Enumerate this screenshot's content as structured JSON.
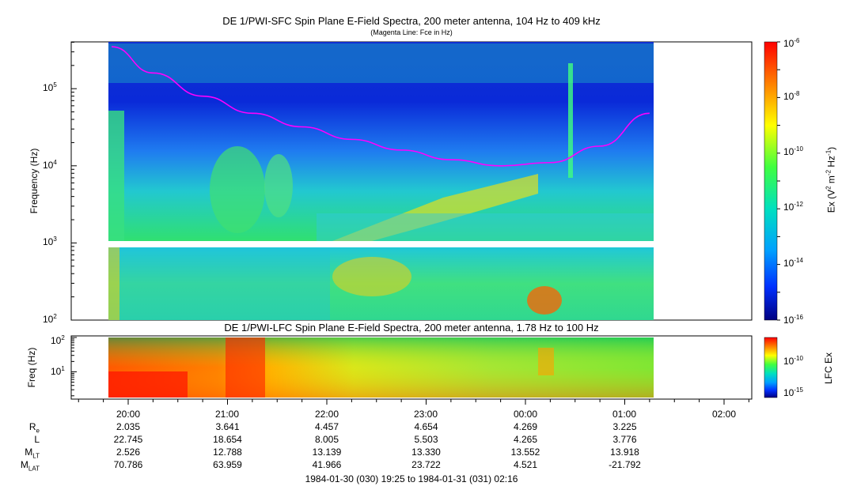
{
  "chart_data": [
    {
      "type": "heatmap",
      "title": "DE 1/PWI-SFC  Spin Plane E-Field Spectra, 200 meter antenna, 104 Hz to 409 kHz",
      "subtitle": "(Magenta Line: Fce in Hz)",
      "ylabel": "Frequency (Hz)",
      "yscale": "log",
      "ylim": [
        100,
        409000
      ],
      "y_ticks": [
        "10^2",
        "10^3",
        "10^4",
        "10^5"
      ],
      "x_ticks": [
        "20:00",
        "21:00",
        "22:00",
        "23:00",
        "00:00",
        "01:00",
        "02:00"
      ],
      "colorbar": {
        "label": "Ex (V^2 m^-2 Hz^-1)",
        "scale": "log",
        "range": [
          1e-16,
          1e-06
        ],
        "ticks": [
          "10^-6",
          "10^-8",
          "10^-10",
          "10^-12",
          "10^-14",
          "10^-16"
        ]
      },
      "overlay_series": [
        {
          "name": "Fce",
          "color": "#ff00ff",
          "x": [
            "19:50",
            "20:15",
            "20:45",
            "21:15",
            "21:45",
            "22:15",
            "22:45",
            "23:15",
            "23:45",
            "00:15",
            "00:45",
            "01:15"
          ],
          "y": [
            350000,
            160000,
            80000,
            48000,
            32000,
            22000,
            16000,
            12000,
            10000,
            11000,
            18000,
            48000
          ]
        }
      ]
    },
    {
      "type": "heatmap",
      "title": "DE 1/PWI-LFC  Spin Plane E-Field Spectra, 200 meter antenna, 1.78 Hz to 100 Hz",
      "ylabel": "Freq (Hz)",
      "yscale": "log",
      "ylim": [
        1.78,
        100
      ],
      "y_ticks": [
        "10^1",
        "10^2"
      ],
      "colorbar": {
        "label": "LFC Ex",
        "scale": "log",
        "ticks": [
          "10^-10",
          "10^-15"
        ]
      }
    }
  ],
  "ephemeris": {
    "labels": [
      "R",
      "L",
      "M",
      "M"
    ],
    "label_subs": [
      "e",
      "",
      "LT",
      "LAT"
    ],
    "columns": [
      {
        "time": "20:00",
        "values": [
          "2.035",
          "22.745",
          "2.526",
          "70.786"
        ]
      },
      {
        "time": "21:00",
        "values": [
          "3.641",
          "18.654",
          "12.788",
          "63.959"
        ]
      },
      {
        "time": "22:00",
        "values": [
          "4.457",
          "8.005",
          "13.139",
          "41.966"
        ]
      },
      {
        "time": "23:00",
        "values": [
          "4.654",
          "5.503",
          "13.330",
          "23.722"
        ]
      },
      {
        "time": "00:00",
        "values": [
          "4.269",
          "4.265",
          "13.552",
          "4.521"
        ]
      },
      {
        "time": "01:00",
        "values": [
          "3.225",
          "3.776",
          "13.918",
          "-21.792"
        ]
      }
    ]
  },
  "time_range": "1984-01-30 (030) 19:25 to 1984-01-31 (031) 02:16"
}
